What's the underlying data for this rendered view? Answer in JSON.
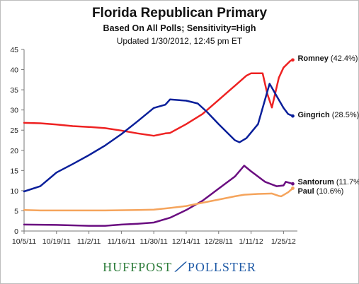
{
  "header": {
    "title": "Florida Republican Primary",
    "subtitle": "Based On All Polls; Sensitivity=High",
    "updated": "Updated 1/30/2012, 12:45 pm ET"
  },
  "branding": {
    "left": "HUFFPOST",
    "right": "POLLSTER"
  },
  "colors": {
    "romney": "#ee2222",
    "gingrich": "#0a1f9a",
    "santorum": "#6a0d80",
    "paul": "#f5a45c",
    "axis": "#777777"
  },
  "chart_data": {
    "type": "line",
    "title": "Florida Republican Primary",
    "xlabel": "",
    "ylabel": "",
    "x_ticks": [
      "10/5/11",
      "10/19/11",
      "11/2/11",
      "11/16/11",
      "11/30/11",
      "12/14/11",
      "12/28/11",
      "1/11/12",
      "1/25/12"
    ],
    "xlim": [
      "2011-10-05",
      "2012-01-31"
    ],
    "ylim": [
      0,
      45
    ],
    "y_ticks": [
      0,
      5,
      10,
      15,
      20,
      25,
      30,
      35,
      40,
      45
    ],
    "grid": false,
    "series": [
      {
        "name": "Romney",
        "end_label": "Romney (42.4%)",
        "color": "#ee2222",
        "points": [
          [
            "2011-10-05",
            26.8
          ],
          [
            "2011-10-12",
            26.7
          ],
          [
            "2011-10-19",
            26.4
          ],
          [
            "2011-10-26",
            26.0
          ],
          [
            "2011-11-02",
            25.8
          ],
          [
            "2011-11-09",
            25.5
          ],
          [
            "2011-11-16",
            24.9
          ],
          [
            "2011-11-23",
            24.2
          ],
          [
            "2011-11-30",
            23.6
          ],
          [
            "2011-12-05",
            24.2
          ],
          [
            "2011-12-07",
            24.3
          ],
          [
            "2011-12-14",
            26.5
          ],
          [
            "2011-12-21",
            29.0
          ],
          [
            "2011-12-28",
            32.5
          ],
          [
            "2012-01-04",
            36.0
          ],
          [
            "2012-01-09",
            38.5
          ],
          [
            "2012-01-11",
            39.1
          ],
          [
            "2012-01-16",
            39.1
          ],
          [
            "2012-01-18",
            34.0
          ],
          [
            "2012-01-20",
            30.6
          ],
          [
            "2012-01-23",
            38.0
          ],
          [
            "2012-01-25",
            40.5
          ],
          [
            "2012-01-28",
            42.2
          ],
          [
            "2012-01-29",
            42.4
          ]
        ]
      },
      {
        "name": "Gingrich",
        "end_label": "Gingrich (28.5%)",
        "color": "#0a1f9a",
        "points": [
          [
            "2011-10-05",
            9.8
          ],
          [
            "2011-10-12",
            11.1
          ],
          [
            "2011-10-19",
            14.5
          ],
          [
            "2011-10-26",
            16.6
          ],
          [
            "2011-11-02",
            18.8
          ],
          [
            "2011-11-09",
            21.2
          ],
          [
            "2011-11-16",
            24.0
          ],
          [
            "2011-11-23",
            27.2
          ],
          [
            "2011-11-30",
            30.5
          ],
          [
            "2011-12-05",
            31.3
          ],
          [
            "2011-12-07",
            32.6
          ],
          [
            "2011-12-14",
            32.3
          ],
          [
            "2011-12-19",
            31.6
          ],
          [
            "2011-12-23",
            29.5
          ],
          [
            "2011-12-28",
            26.5
          ],
          [
            "2012-01-04",
            22.5
          ],
          [
            "2012-01-06",
            22.0
          ],
          [
            "2012-01-09",
            23.0
          ],
          [
            "2012-01-14",
            26.5
          ],
          [
            "2012-01-19",
            36.5
          ],
          [
            "2012-01-22",
            33.5
          ],
          [
            "2012-01-25",
            30.5
          ],
          [
            "2012-01-27",
            29.0
          ],
          [
            "2012-01-29",
            28.5
          ]
        ]
      },
      {
        "name": "Santorum",
        "end_label": "Santorum (11.7%)",
        "color": "#6a0d80",
        "points": [
          [
            "2011-10-05",
            1.6
          ],
          [
            "2011-10-19",
            1.5
          ],
          [
            "2011-11-02",
            1.3
          ],
          [
            "2011-11-09",
            1.3
          ],
          [
            "2011-11-16",
            1.6
          ],
          [
            "2011-11-23",
            1.8
          ],
          [
            "2011-11-30",
            2.1
          ],
          [
            "2011-12-07",
            3.3
          ],
          [
            "2011-12-14",
            5.2
          ],
          [
            "2011-12-21",
            7.5
          ],
          [
            "2011-12-28",
            10.5
          ],
          [
            "2012-01-04",
            13.5
          ],
          [
            "2012-01-08",
            16.2
          ],
          [
            "2012-01-11",
            14.8
          ],
          [
            "2012-01-14",
            13.5
          ],
          [
            "2012-01-17",
            12.2
          ],
          [
            "2012-01-22",
            11.1
          ],
          [
            "2012-01-25",
            11.3
          ],
          [
            "2012-01-26",
            12.2
          ],
          [
            "2012-01-29",
            11.7
          ]
        ]
      },
      {
        "name": "Paul",
        "end_label": "Paul (10.6%)",
        "color": "#f5a45c",
        "points": [
          [
            "2011-10-05",
            5.2
          ],
          [
            "2011-10-12",
            5.1
          ],
          [
            "2011-10-26",
            5.1
          ],
          [
            "2011-11-09",
            5.1
          ],
          [
            "2011-11-23",
            5.2
          ],
          [
            "2011-11-30",
            5.3
          ],
          [
            "2011-12-07",
            5.7
          ],
          [
            "2011-12-14",
            6.2
          ],
          [
            "2011-12-21",
            7.0
          ],
          [
            "2011-12-28",
            7.8
          ],
          [
            "2012-01-04",
            8.6
          ],
          [
            "2012-01-08",
            9.0
          ],
          [
            "2012-01-14",
            9.2
          ],
          [
            "2012-01-20",
            9.3
          ],
          [
            "2012-01-23",
            8.7
          ],
          [
            "2012-01-24",
            8.6
          ],
          [
            "2012-01-27",
            9.6
          ],
          [
            "2012-01-29",
            10.6
          ]
        ]
      }
    ]
  }
}
